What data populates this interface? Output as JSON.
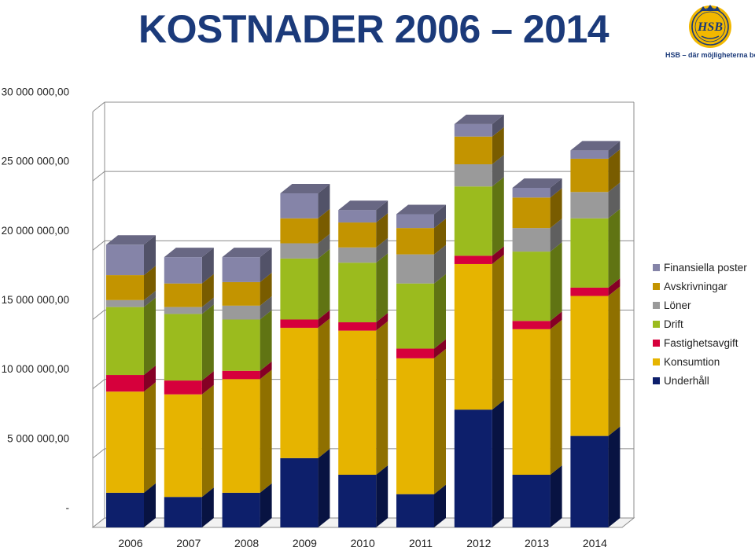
{
  "header": {
    "title": "KOSTNADER 2006 – 2014",
    "logo_text": "HSB",
    "tagline": "HSB – där möjligheterna bor",
    "brand_color": "#1b3a7a",
    "logo_color": "#f2b800"
  },
  "chart_data": {
    "type": "bar",
    "stacked": true,
    "three_d": true,
    "title": "KOSTNADER 2006 – 2014",
    "xlabel": "",
    "ylabel": "",
    "ylim": [
      0,
      30000000
    ],
    "y_ticks": [
      {
        "value": 0,
        "label": "-"
      },
      {
        "value": 5000000,
        "label": "5 000 000,00"
      },
      {
        "value": 10000000,
        "label": "10 000 000,00"
      },
      {
        "value": 15000000,
        "label": "15 000 000,00"
      },
      {
        "value": 20000000,
        "label": "20 000 000,00"
      },
      {
        "value": 25000000,
        "label": "25 000 000,00"
      },
      {
        "value": 30000000,
        "label": "30 000 000,00"
      }
    ],
    "categories": [
      "2006",
      "2007",
      "2008",
      "2009",
      "2010",
      "2011",
      "2012",
      "2013",
      "2014"
    ],
    "legend_position": "right",
    "series": [
      {
        "name": "Underhåll",
        "color": "#0d1f6b",
        "values": [
          2500000,
          2200000,
          2500000,
          5000000,
          3800000,
          2400000,
          8500000,
          3800000,
          6600000
        ]
      },
      {
        "name": "Konsumtion",
        "color": "#e6b400",
        "values": [
          7300000,
          7400000,
          8200000,
          9400000,
          10400000,
          9800000,
          10500000,
          10500000,
          10100000
        ]
      },
      {
        "name": "Fastighetsavgift",
        "color": "#d6003c",
        "values": [
          1200000,
          1000000,
          600000,
          600000,
          600000,
          700000,
          600000,
          600000,
          600000
        ]
      },
      {
        "name": "Drift",
        "color": "#9bbb1e",
        "values": [
          4900000,
          4800000,
          3700000,
          4400000,
          4300000,
          4700000,
          5000000,
          5000000,
          5000000
        ]
      },
      {
        "name": "Löner",
        "color": "#9a9a9a",
        "values": [
          500000,
          500000,
          1000000,
          1100000,
          1100000,
          2100000,
          1600000,
          1700000,
          1900000
        ]
      },
      {
        "name": "Avskrivningar",
        "color": "#c39400",
        "values": [
          1800000,
          1700000,
          1700000,
          1800000,
          1800000,
          1900000,
          2000000,
          2200000,
          2400000
        ]
      },
      {
        "name": "Finansiella poster",
        "color": "#8584a8",
        "values": [
          2200000,
          1900000,
          1800000,
          1800000,
          900000,
          1000000,
          900000,
          700000,
          600000
        ]
      }
    ]
  }
}
